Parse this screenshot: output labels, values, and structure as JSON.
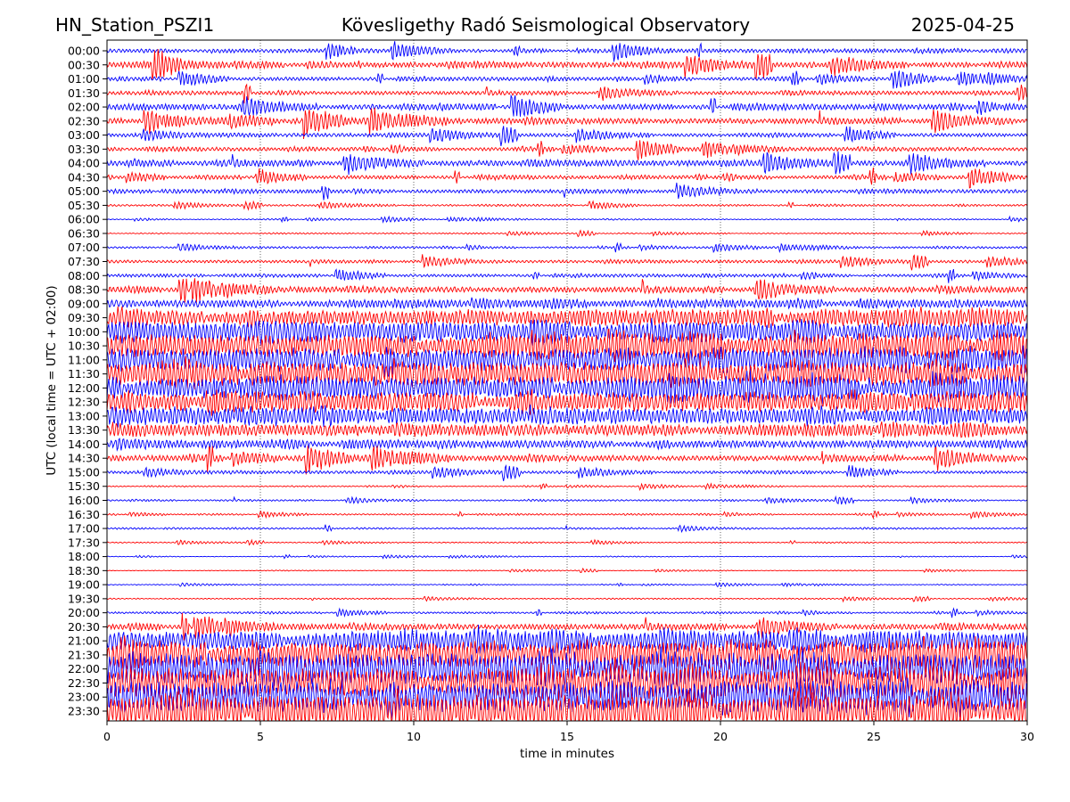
{
  "header": {
    "station": "HN_Station_PSZI1",
    "observatory": "Kövesligethy Radó Seismological Observatory",
    "date": "2025-04-25"
  },
  "chart_data": {
    "type": "line",
    "title": "Kövesligethy Radó Seismological Observatory",
    "xlabel": "time in minutes",
    "ylabel": "UTC (local time = UTC + 02:00)",
    "xlim": [
      0,
      30
    ],
    "xticks": [
      "0",
      "5",
      "10",
      "15",
      "20",
      "25",
      "30"
    ],
    "grid": "vertical dotted at 5-minute intervals",
    "colors": [
      "#0000ff",
      "#ff0000"
    ],
    "traces": [
      {
        "label": "00:00",
        "activity": 1
      },
      {
        "label": "00:30",
        "activity": 1.5
      },
      {
        "label": "01:00",
        "activity": 1
      },
      {
        "label": "01:30",
        "activity": 1
      },
      {
        "label": "02:00",
        "activity": 1.5
      },
      {
        "label": "02:30",
        "activity": 1.5
      },
      {
        "label": "03:00",
        "activity": 1
      },
      {
        "label": "03:30",
        "activity": 1
      },
      {
        "label": "04:00",
        "activity": 1.5
      },
      {
        "label": "04:30",
        "activity": 1
      },
      {
        "label": "05:00",
        "activity": 1
      },
      {
        "label": "05:30",
        "activity": 0.5
      },
      {
        "label": "06:00",
        "activity": 0.3
      },
      {
        "label": "06:30",
        "activity": 0.3
      },
      {
        "label": "07:00",
        "activity": 0.5
      },
      {
        "label": "07:30",
        "activity": 0.8
      },
      {
        "label": "08:00",
        "activity": 0.8
      },
      {
        "label": "08:30",
        "activity": 1.5
      },
      {
        "label": "09:00",
        "activity": 2
      },
      {
        "label": "09:30",
        "activity": 4
      },
      {
        "label": "10:00",
        "activity": 5
      },
      {
        "label": "10:30",
        "activity": 6
      },
      {
        "label": "11:00",
        "activity": 6
      },
      {
        "label": "11:30",
        "activity": 6
      },
      {
        "label": "12:00",
        "activity": 6
      },
      {
        "label": "12:30",
        "activity": 5
      },
      {
        "label": "13:00",
        "activity": 4
      },
      {
        "label": "13:30",
        "activity": 3
      },
      {
        "label": "14:00",
        "activity": 2
      },
      {
        "label": "14:30",
        "activity": 1.5
      },
      {
        "label": "15:00",
        "activity": 0.8
      },
      {
        "label": "15:30",
        "activity": 0.3
      },
      {
        "label": "16:00",
        "activity": 0.4
      },
      {
        "label": "16:30",
        "activity": 0.4
      },
      {
        "label": "17:00",
        "activity": 0.4
      },
      {
        "label": "17:30",
        "activity": 0.3
      },
      {
        "label": "18:00",
        "activity": 0.2
      },
      {
        "label": "18:30",
        "activity": 0.2
      },
      {
        "label": "19:00",
        "activity": 0.2
      },
      {
        "label": "19:30",
        "activity": 0.3
      },
      {
        "label": "20:00",
        "activity": 0.5
      },
      {
        "label": "20:30",
        "activity": 1.5
      },
      {
        "label": "21:00",
        "activity": 5
      },
      {
        "label": "21:30",
        "activity": 7
      },
      {
        "label": "22:00",
        "activity": 8
      },
      {
        "label": "22:30",
        "activity": 8
      },
      {
        "label": "23:00",
        "activity": 8
      },
      {
        "label": "23:30",
        "activity": 8
      }
    ]
  }
}
